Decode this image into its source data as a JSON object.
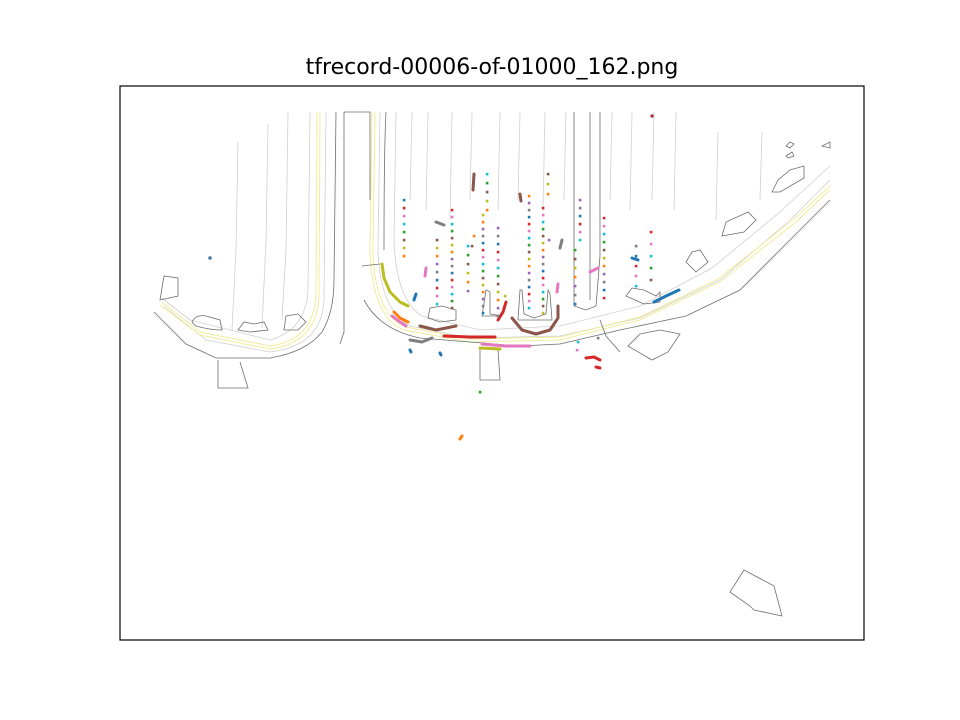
{
  "chart_data": {
    "type": "scatter",
    "title": "tfrecord-00006-of-01000_162.png",
    "xlabel": "",
    "ylabel": "",
    "grid": false,
    "legend": "none",
    "colors": {
      "road_edge": "#6e6e6e",
      "lane": "#c8c8c8",
      "center_line": "#f5f0a0",
      "tab_palette": [
        "#1f77b4",
        "#ff7f0e",
        "#2ca02c",
        "#d62728",
        "#9467bd",
        "#8c564b",
        "#e377c2",
        "#7f7f7f",
        "#bcbd22",
        "#17becf"
      ]
    },
    "trajectory_series": [
      {
        "color": "#bcbd22",
        "points": [
          [
            382,
            264
          ],
          [
            384,
            278
          ],
          [
            390,
            292
          ],
          [
            400,
            302
          ],
          [
            408,
            306
          ]
        ]
      },
      {
        "color": "#8c564b",
        "points": [
          [
            474,
            174
          ],
          [
            473,
            190
          ]
        ]
      },
      {
        "color": "#d62728",
        "points": [
          [
            444,
            336
          ],
          [
            470,
            337
          ],
          [
            495,
            337
          ]
        ]
      },
      {
        "color": "#8c564b",
        "points": [
          [
            420,
            326
          ],
          [
            436,
            330
          ],
          [
            456,
            326
          ]
        ]
      },
      {
        "color": "#7f7f7f",
        "points": [
          [
            410,
            340
          ],
          [
            422,
            342
          ],
          [
            432,
            338
          ]
        ]
      },
      {
        "color": "#ff7f0e",
        "points": [
          [
            394,
            312
          ],
          [
            400,
            318
          ],
          [
            408,
            322
          ]
        ]
      },
      {
        "color": "#e377c2",
        "points": [
          [
            392,
            316
          ],
          [
            400,
            322
          ],
          [
            406,
            326
          ]
        ]
      },
      {
        "color": "#8c564b",
        "points": [
          [
            512,
            318
          ],
          [
            522,
            330
          ],
          [
            536,
            334
          ],
          [
            550,
            330
          ],
          [
            558,
            318
          ],
          [
            558,
            306
          ]
        ]
      },
      {
        "color": "#d62728",
        "points": [
          [
            498,
            320
          ],
          [
            503,
            312
          ],
          [
            506,
            302
          ]
        ]
      },
      {
        "color": "#e377c2",
        "points": [
          [
            482,
            344
          ],
          [
            505,
            346
          ],
          [
            530,
            346
          ]
        ]
      },
      {
        "color": "#bcbd22",
        "points": [
          [
            480,
            348
          ],
          [
            500,
            349
          ]
        ]
      },
      {
        "color": "#1f77b4",
        "points": [
          [
            414,
            300
          ],
          [
            416,
            294
          ]
        ]
      },
      {
        "color": "#1f77b4",
        "points": [
          [
            654,
            302
          ],
          [
            666,
            296
          ],
          [
            679,
            290
          ]
        ]
      },
      {
        "color": "#1f77b4",
        "points": [
          [
            632,
            258
          ],
          [
            638,
            260
          ]
        ]
      },
      {
        "color": "#e377c2",
        "points": [
          [
            590,
            272
          ],
          [
            598,
            268
          ]
        ]
      },
      {
        "color": "#d62728",
        "points": [
          [
            586,
            358
          ],
          [
            594,
            357
          ],
          [
            600,
            360
          ]
        ]
      },
      {
        "color": "#7f7f7f",
        "points": [
          [
            436,
            222
          ],
          [
            444,
            225
          ]
        ]
      },
      {
        "color": "#7f7f7f",
        "points": [
          [
            562,
            240
          ],
          [
            560,
            248
          ]
        ]
      },
      {
        "color": "#8c564b",
        "points": [
          [
            520,
            194
          ],
          [
            521,
            201
          ]
        ]
      },
      {
        "color": "#e377c2",
        "points": [
          [
            426,
            268
          ],
          [
            425,
            276
          ]
        ]
      },
      {
        "color": "#e377c2",
        "points": [
          [
            558,
            284
          ],
          [
            557,
            292
          ]
        ]
      },
      {
        "color": "#ff7f0e",
        "points": [
          [
            462,
            436
          ],
          [
            460,
            439
          ]
        ]
      },
      {
        "color": "#1f77b4",
        "points": [
          [
            410,
            350
          ],
          [
            411,
            352
          ]
        ]
      },
      {
        "color": "#1f77b4",
        "points": [
          [
            440,
            353
          ],
          [
            441,
            355
          ]
        ]
      },
      {
        "color": "#d62728",
        "points": [
          [
            596,
            367
          ],
          [
            600,
            368
          ]
        ]
      }
    ],
    "point_columns": [
      {
        "x": 404,
        "y_start": 200,
        "y_end": 262,
        "step": 8
      },
      {
        "x": 437,
        "y_start": 240,
        "y_end": 308,
        "step": 8
      },
      {
        "x": 452,
        "y_start": 210,
        "y_end": 312,
        "step": 7
      },
      {
        "x": 468,
        "y_start": 246,
        "y_end": 296,
        "step": 9
      },
      {
        "x": 483,
        "y_start": 215,
        "y_end": 316,
        "step": 7
      },
      {
        "x": 498,
        "y_start": 228,
        "y_end": 316,
        "step": 8
      },
      {
        "x": 529,
        "y_start": 196,
        "y_end": 312,
        "step": 7
      },
      {
        "x": 543,
        "y_start": 208,
        "y_end": 316,
        "step": 7
      },
      {
        "x": 575,
        "y_start": 250,
        "y_end": 310,
        "step": 9
      },
      {
        "x": 580,
        "y_start": 200,
        "y_end": 246,
        "step": 8
      },
      {
        "x": 604,
        "y_start": 218,
        "y_end": 300,
        "step": 8
      },
      {
        "x": 636,
        "y_start": 246,
        "y_end": 292,
        "step": 10
      },
      {
        "x": 651,
        "y_start": 232,
        "y_end": 286,
        "step": 12
      },
      {
        "x": 487,
        "y_start": 174,
        "y_end": 210,
        "step": 9
      },
      {
        "x": 548,
        "y_start": 174,
        "y_end": 196,
        "step": 10
      }
    ],
    "isolated_points": [
      [
        480,
        392
      ],
      [
        578,
        342
      ],
      [
        577,
        350
      ],
      [
        652,
        116
      ],
      [
        210,
        258
      ],
      [
        598,
        338
      ],
      [
        549,
        240
      ],
      [
        474,
        236
      ],
      [
        505,
        296
      ],
      [
        472,
        246
      ]
    ]
  }
}
